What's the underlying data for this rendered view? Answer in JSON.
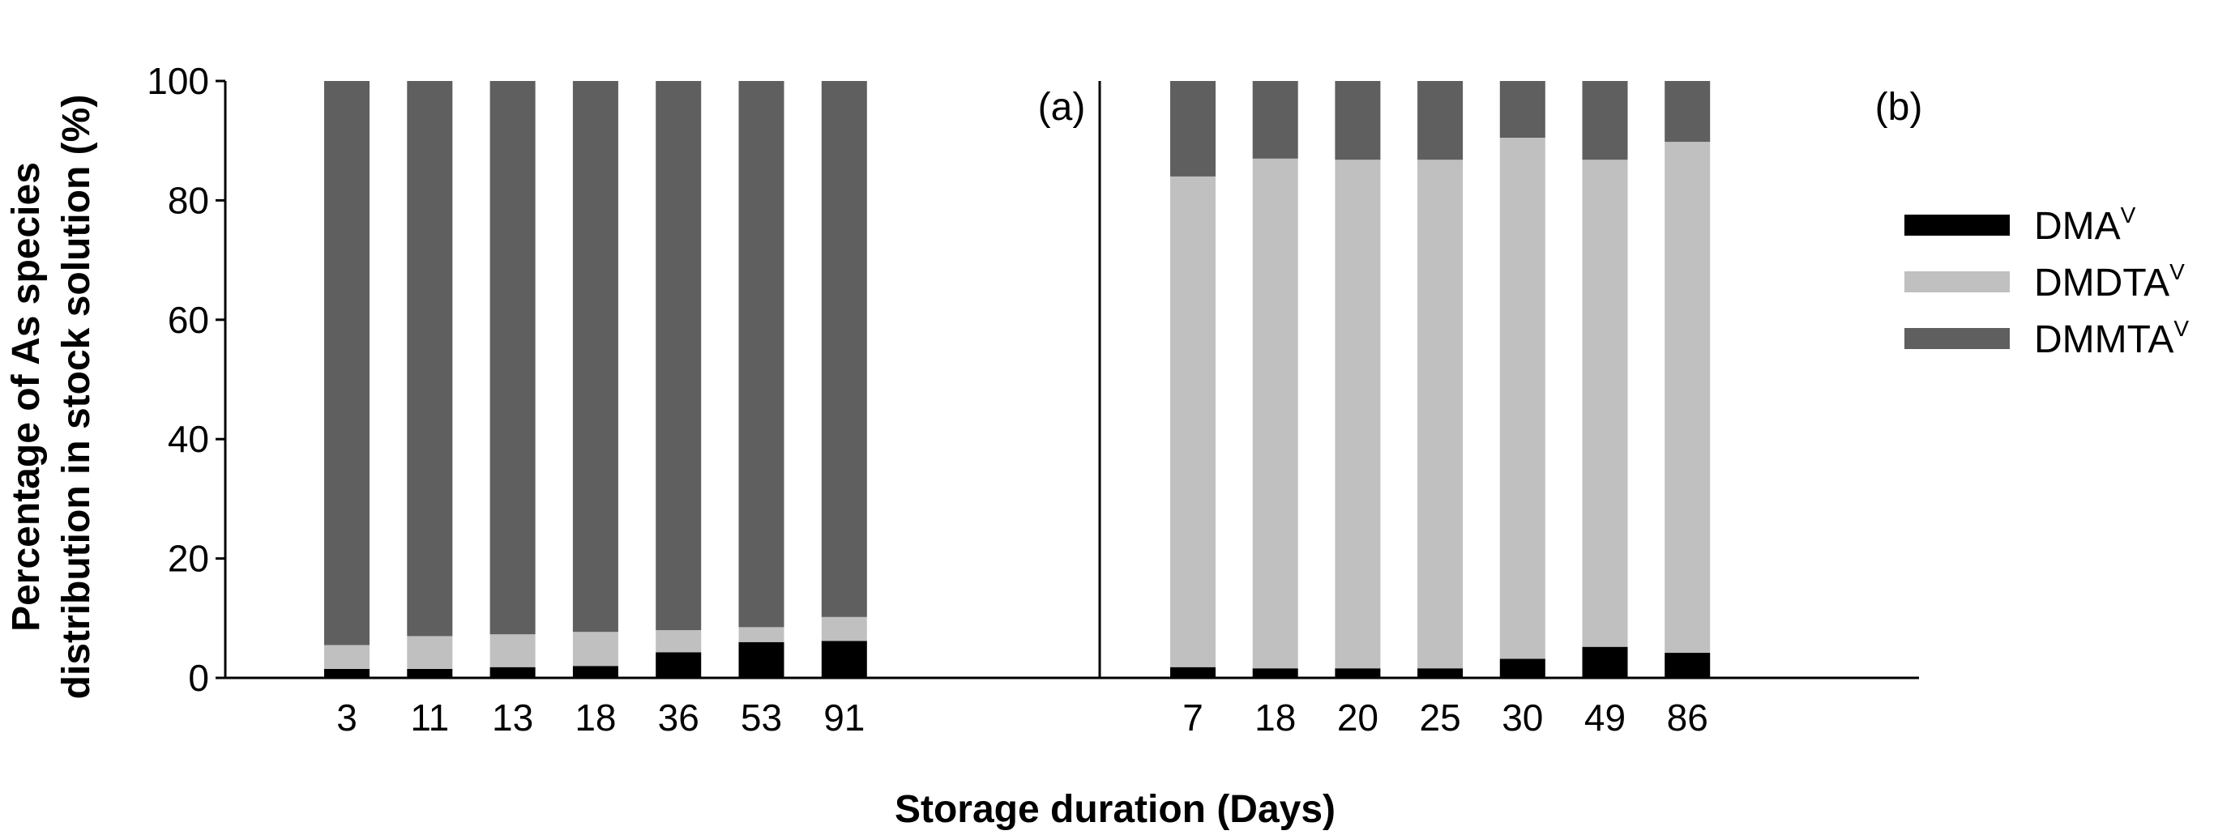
{
  "chart_data": {
    "type": "bar",
    "stacked": true,
    "xlabel": "Storage duration (Days)",
    "ylabel_line1": "Percentage of As species",
    "ylabel_line2": "distribution in stock solution (%)",
    "ylim": [
      0,
      100
    ],
    "yticks": [
      "0",
      "20",
      "40",
      "60",
      "80",
      "100"
    ],
    "legend_position": "right",
    "legend": [
      {
        "name": "DMA",
        "sup": "V",
        "color": "#000000"
      },
      {
        "name": "DMDTA",
        "sup": "V",
        "color": "#c0c0c0"
      },
      {
        "name": "DMMTA",
        "sup": "V",
        "color": "#5f5f5f"
      }
    ],
    "panels": [
      {
        "label": "(a)",
        "categories": [
          "3",
          "11",
          "13",
          "18",
          "36",
          "53",
          "91"
        ],
        "series": [
          {
            "name": "DMA",
            "color": "#000000",
            "values": [
              1.5,
              1.5,
              1.8,
              2.0,
              4.3,
              6.0,
              6.2
            ]
          },
          {
            "name": "DMDTA",
            "color": "#c0c0c0",
            "values": [
              4.0,
              5.5,
              5.5,
              5.7,
              3.7,
              2.5,
              4.0
            ]
          },
          {
            "name": "DMMTA",
            "color": "#5f5f5f",
            "values": [
              94.5,
              93.0,
              92.7,
              92.3,
              92.0,
              91.5,
              89.8
            ]
          }
        ]
      },
      {
        "label": "(b)",
        "categories": [
          "7",
          "18",
          "20",
          "25",
          "30",
          "49",
          "86"
        ],
        "series": [
          {
            "name": "DMA",
            "color": "#000000",
            "values": [
              1.8,
              1.6,
              1.6,
              1.6,
              3.2,
              5.2,
              4.2
            ]
          },
          {
            "name": "DMDTA",
            "color": "#c0c0c0",
            "values": [
              82.2,
              85.4,
              85.2,
              85.2,
              87.3,
              81.6,
              85.6
            ]
          },
          {
            "name": "DMMTA",
            "color": "#5f5f5f",
            "values": [
              16.0,
              13.0,
              13.2,
              13.2,
              9.5,
              13.2,
              10.2
            ]
          }
        ]
      }
    ]
  }
}
